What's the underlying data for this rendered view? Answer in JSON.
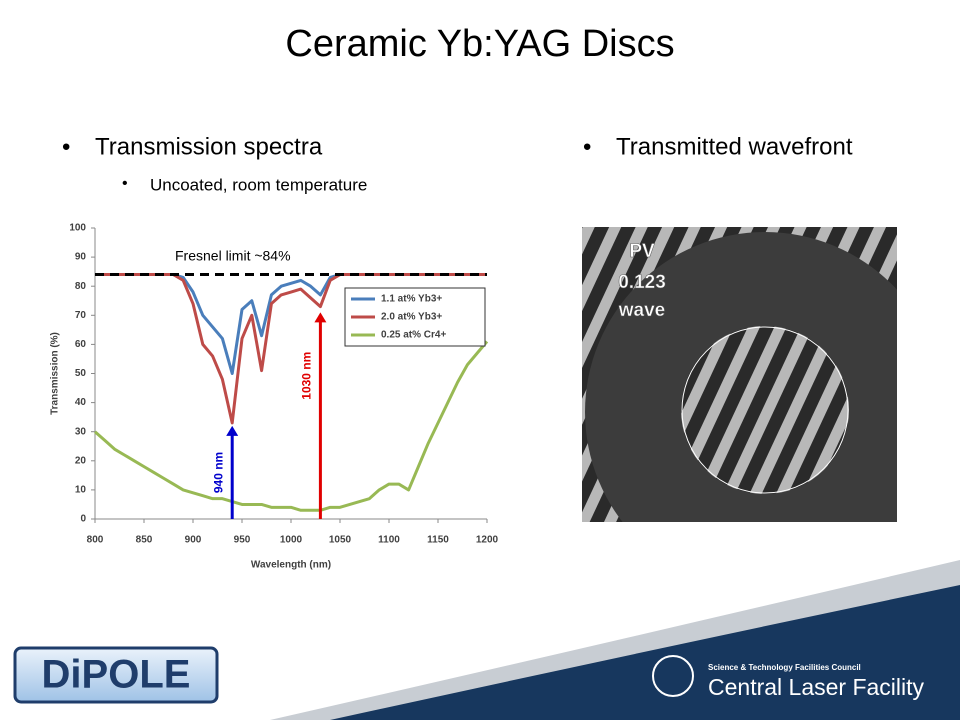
{
  "title": "Ceramic Yb:YAG Discs",
  "left_bullet": "Transmission spectra",
  "left_subbullet": "Uncoated, room temperature",
  "right_bullet": "Transmitted wavefront",
  "chart_data": {
    "type": "line",
    "xlabel": "Wavelength (nm)",
    "ylabel": "Transmission (%)",
    "x": [
      800,
      810,
      820,
      830,
      840,
      850,
      860,
      870,
      880,
      890,
      900,
      910,
      920,
      930,
      940,
      950,
      960,
      970,
      980,
      990,
      1000,
      1010,
      1020,
      1030,
      1040,
      1050,
      1060,
      1070,
      1080,
      1090,
      1100,
      1110,
      1120,
      1130,
      1140,
      1150,
      1160,
      1170,
      1180,
      1190,
      1200
    ],
    "series": [
      {
        "name": "1.1 at% Yb3+",
        "color": "#4a7ebb",
        "values": [
          84,
          84,
          84,
          84,
          84,
          84,
          84,
          84,
          84,
          83,
          78,
          70,
          66,
          62,
          50,
          72,
          75,
          63,
          77,
          80,
          81,
          82,
          80,
          77,
          83,
          84,
          84,
          84,
          84,
          84,
          84,
          84,
          84,
          84,
          84,
          84,
          84,
          84,
          84,
          84,
          84
        ]
      },
      {
        "name": "2.0 at% Yb3+",
        "color": "#be4b48",
        "values": [
          84,
          84,
          84,
          84,
          84,
          84,
          84,
          84,
          84,
          82,
          74,
          60,
          56,
          48,
          33,
          62,
          70,
          51,
          74,
          77,
          78,
          79,
          76,
          73,
          82,
          84,
          84,
          84,
          84,
          84,
          84,
          84,
          84,
          84,
          84,
          84,
          84,
          84,
          84,
          84,
          84
        ]
      },
      {
        "name": "0.25 at% Cr4+",
        "color": "#98b954",
        "values": [
          30,
          27,
          24,
          22,
          20,
          18,
          16,
          14,
          12,
          10,
          9,
          8,
          7,
          7,
          6,
          5,
          5,
          5,
          4,
          4,
          4,
          3,
          3,
          3,
          4,
          4,
          5,
          6,
          7,
          10,
          12,
          12,
          10,
          18,
          26,
          33,
          40,
          47,
          53,
          57,
          61
        ]
      }
    ],
    "xlim": [
      800,
      1200
    ],
    "ylim": [
      0,
      100
    ],
    "xticks": [
      800,
      850,
      900,
      950,
      1000,
      1050,
      1100,
      1150,
      1200
    ],
    "yticks": [
      0,
      10,
      20,
      30,
      40,
      50,
      60,
      70,
      80,
      90,
      100
    ],
    "grid": false,
    "legend": "upper right",
    "fresnel_limit": 84,
    "fresnel_label": "Fresnel limit ~84%",
    "annotations": [
      {
        "x": 940,
        "y": 32,
        "label": "940 nm",
        "color": "#0000cc"
      },
      {
        "x": 1030,
        "y": 71,
        "label": "1030 nm",
        "color": "#e00000"
      }
    ]
  },
  "wavefront": {
    "pv_label": "PV",
    "pv_value": "0.123",
    "unit": "wave"
  },
  "footer": {
    "logo_left": "DiPOLE",
    "council": "Science & Technology Facilities Council",
    "facility": "Central Laser Facility"
  }
}
